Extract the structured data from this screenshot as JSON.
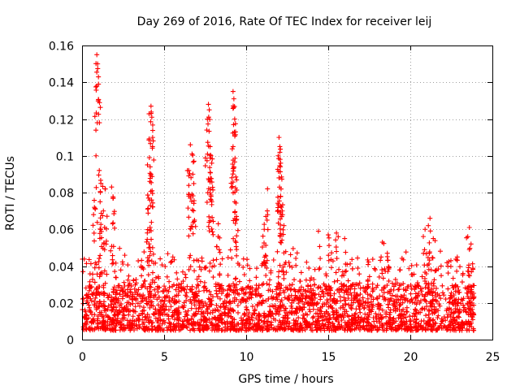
{
  "chart_data": {
    "type": "scatter",
    "title": "Day 269 of 2016, Rate Of TEC Index for receiver leij",
    "xlabel": "GPS time / hours",
    "ylabel": "ROTI / TECUs",
    "xlim": [
      0,
      25
    ],
    "ylim": [
      0,
      0.16
    ],
    "xticks": [
      0,
      5,
      10,
      15,
      20,
      25
    ],
    "xtick_labels": [
      "0",
      "5",
      "10",
      "15",
      "20",
      "25"
    ],
    "yticks": [
      0,
      0.02,
      0.04,
      0.06,
      0.08,
      0.1,
      0.12,
      0.14,
      0.16
    ],
    "ytick_labels": [
      "0",
      "0.02",
      "0.04",
      "0.06",
      "0.08",
      "0.1",
      "0.12",
      "0.14",
      "0.16"
    ],
    "grid": true,
    "marker": "+",
    "color": "#ff0000",
    "series": [
      {
        "name": "ROTI",
        "x_range": [
          0,
          23.9
        ],
        "baseline_band": [
          0.005,
          0.03
        ],
        "description_of_density": "dense band of + markers across the day",
        "peaks": [
          {
            "x": 0.9,
            "y": 0.155
          },
          {
            "x": 0.95,
            "y": 0.15
          },
          {
            "x": 1.0,
            "y": 0.139
          },
          {
            "x": 0.85,
            "y": 0.1
          },
          {
            "x": 1.05,
            "y": 0.092
          },
          {
            "x": 1.15,
            "y": 0.085
          },
          {
            "x": 1.4,
            "y": 0.082
          },
          {
            "x": 1.8,
            "y": 0.083
          },
          {
            "x": 1.9,
            "y": 0.077
          },
          {
            "x": 1.1,
            "y": 0.075
          },
          {
            "x": 1.3,
            "y": 0.07
          },
          {
            "x": 0.7,
            "y": 0.068
          },
          {
            "x": 4.2,
            "y": 0.127
          },
          {
            "x": 4.25,
            "y": 0.121
          },
          {
            "x": 4.3,
            "y": 0.11
          },
          {
            "x": 4.1,
            "y": 0.099
          },
          {
            "x": 4.15,
            "y": 0.094
          },
          {
            "x": 4.2,
            "y": 0.09
          },
          {
            "x": 4.05,
            "y": 0.077
          },
          {
            "x": 4.0,
            "y": 0.071
          },
          {
            "x": 4.3,
            "y": 0.05
          },
          {
            "x": 6.6,
            "y": 0.106
          },
          {
            "x": 6.7,
            "y": 0.101
          },
          {
            "x": 6.5,
            "y": 0.092
          },
          {
            "x": 6.75,
            "y": 0.09
          },
          {
            "x": 6.6,
            "y": 0.077
          },
          {
            "x": 6.85,
            "y": 0.065
          },
          {
            "x": 7.7,
            "y": 0.128
          },
          {
            "x": 7.75,
            "y": 0.125
          },
          {
            "x": 7.6,
            "y": 0.114
          },
          {
            "x": 7.8,
            "y": 0.105
          },
          {
            "x": 7.85,
            "y": 0.1
          },
          {
            "x": 7.9,
            "y": 0.096
          },
          {
            "x": 7.8,
            "y": 0.091
          },
          {
            "x": 7.9,
            "y": 0.075
          },
          {
            "x": 8.3,
            "y": 0.063
          },
          {
            "x": 9.2,
            "y": 0.135
          },
          {
            "x": 9.25,
            "y": 0.131
          },
          {
            "x": 9.3,
            "y": 0.12
          },
          {
            "x": 9.35,
            "y": 0.113
          },
          {
            "x": 9.2,
            "y": 0.105
          },
          {
            "x": 9.2,
            "y": 0.093
          },
          {
            "x": 9.3,
            "y": 0.075
          },
          {
            "x": 9.4,
            "y": 0.065
          },
          {
            "x": 11.3,
            "y": 0.082
          },
          {
            "x": 11.2,
            "y": 0.067
          },
          {
            "x": 11.1,
            "y": 0.06
          },
          {
            "x": 12.0,
            "y": 0.11
          },
          {
            "x": 12.05,
            "y": 0.105
          },
          {
            "x": 11.95,
            "y": 0.1
          },
          {
            "x": 12.1,
            "y": 0.096
          },
          {
            "x": 12.0,
            "y": 0.088
          },
          {
            "x": 12.1,
            "y": 0.078
          },
          {
            "x": 12.2,
            "y": 0.07
          },
          {
            "x": 12.3,
            "y": 0.062
          },
          {
            "x": 14.4,
            "y": 0.059
          },
          {
            "x": 15.0,
            "y": 0.057
          },
          {
            "x": 15.5,
            "y": 0.058
          },
          {
            "x": 16.0,
            "y": 0.055
          },
          {
            "x": 18.3,
            "y": 0.053
          },
          {
            "x": 18.6,
            "y": 0.047
          },
          {
            "x": 21.2,
            "y": 0.066
          },
          {
            "x": 21.1,
            "y": 0.062
          },
          {
            "x": 20.9,
            "y": 0.06
          },
          {
            "x": 21.4,
            "y": 0.055
          },
          {
            "x": 23.6,
            "y": 0.061
          },
          {
            "x": 23.5,
            "y": 0.056
          },
          {
            "x": 23.7,
            "y": 0.052
          }
        ]
      }
    ]
  }
}
